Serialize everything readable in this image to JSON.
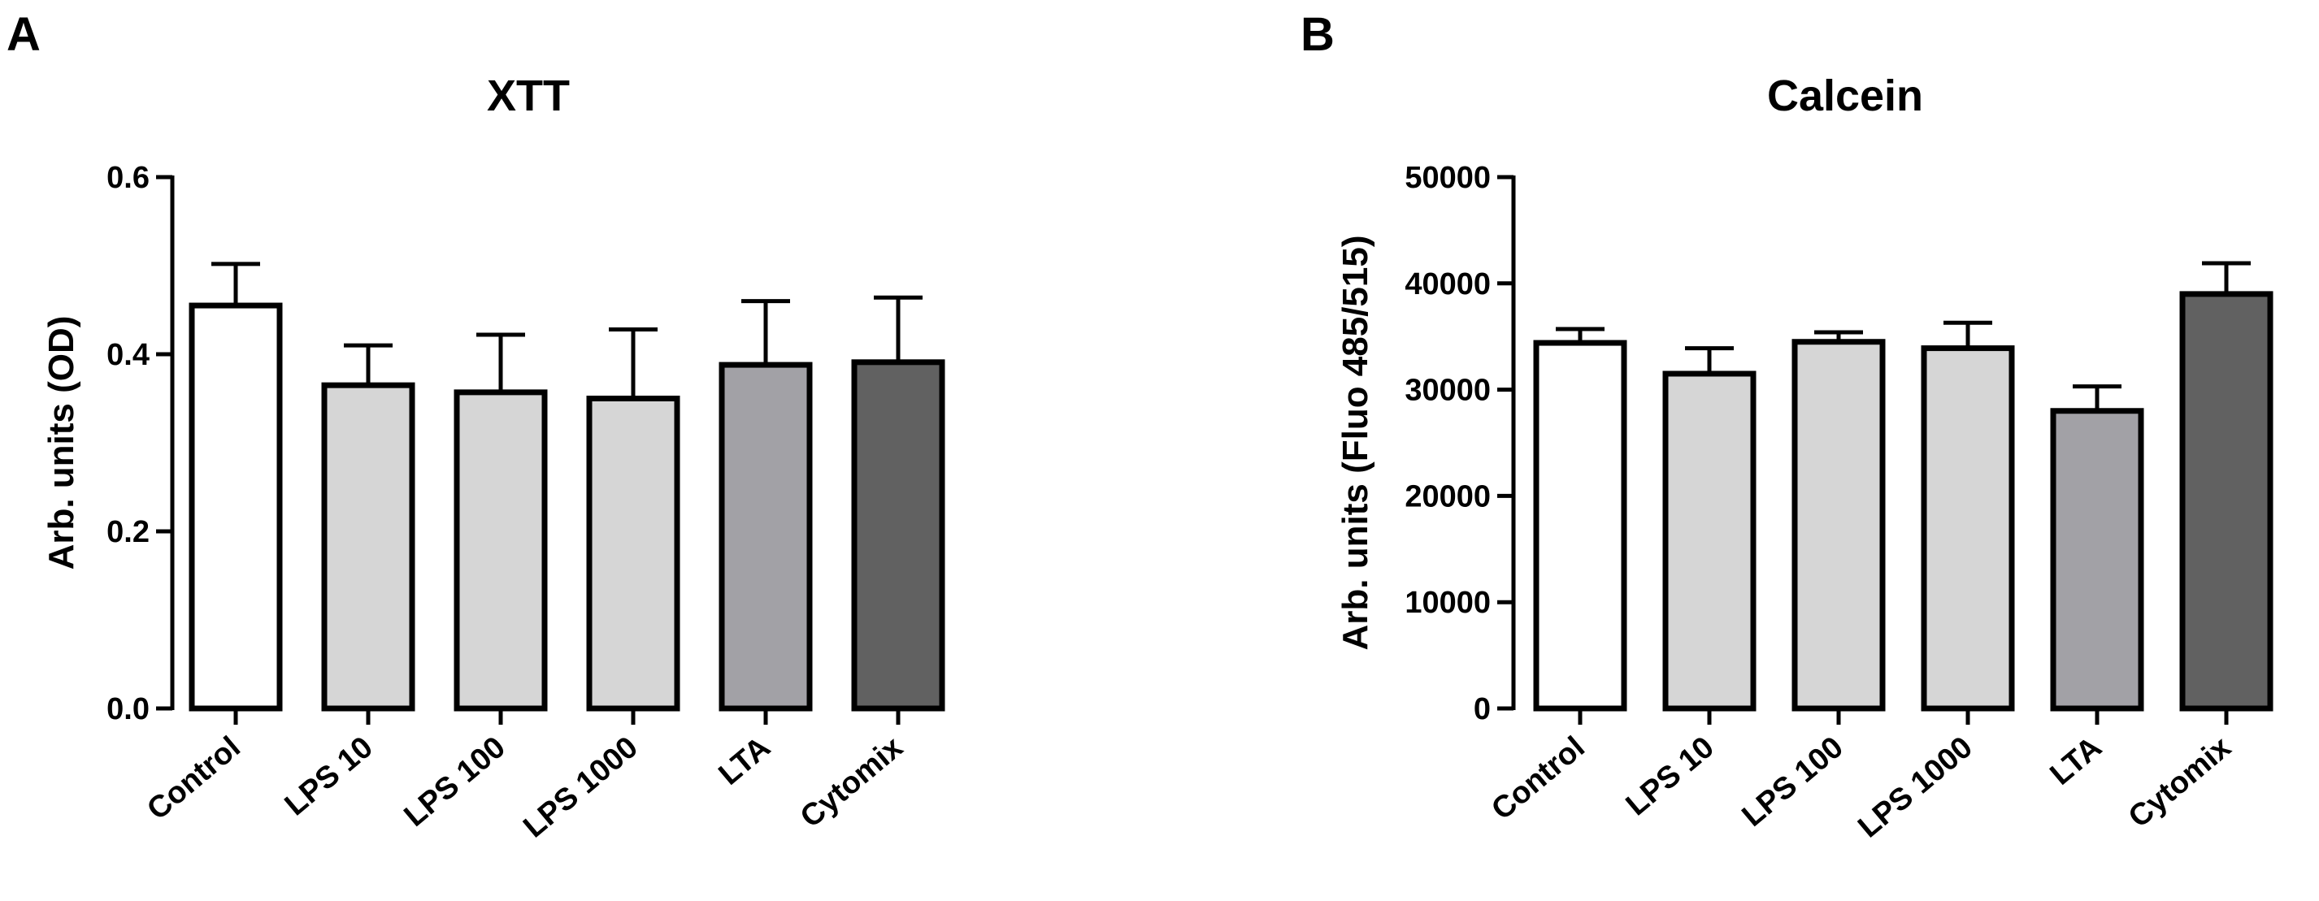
{
  "chart_data": [
    {
      "panel": "A",
      "type": "bar",
      "title": "XTT",
      "xlabel": "",
      "ylabel": "Arb. units (OD)",
      "ylim": [
        0,
        0.6
      ],
      "yticks": [
        0.0,
        0.2,
        0.4,
        0.6
      ],
      "ytick_labels": [
        "0.0",
        "0.2",
        "0.4",
        "0.6"
      ],
      "categories": [
        "Control",
        "LPS 10",
        "LPS 100",
        "LPS 1000",
        "LTA",
        "Cytomix"
      ],
      "values": [
        0.455,
        0.365,
        0.357,
        0.35,
        0.388,
        0.391
      ],
      "errors": [
        0.047,
        0.045,
        0.065,
        0.078,
        0.072,
        0.073
      ],
      "bar_colors": [
        "#ffffff",
        "#d6d6d6",
        "#d6d6d6",
        "#d6d6d6",
        "#a2a1a6",
        "#616161"
      ]
    },
    {
      "panel": "B",
      "type": "bar",
      "title": "Calcein",
      "xlabel": "",
      "ylabel": "Arb. units (Fluo 485/515)",
      "ylim": [
        0,
        50000
      ],
      "yticks": [
        0,
        10000,
        20000,
        30000,
        40000,
        50000
      ],
      "ytick_labels": [
        "0",
        "10000",
        "20000",
        "30000",
        "40000",
        "50000"
      ],
      "categories": [
        "Control",
        "LPS 10",
        "LPS 100",
        "LPS 1000",
        "LTA",
        "Cytomix"
      ],
      "values": [
        34400,
        31500,
        34500,
        33900,
        28000,
        39000
      ],
      "errors": [
        1300,
        2400,
        900,
        2400,
        2300,
        2900
      ],
      "bar_colors": [
        "#ffffff",
        "#d6d6d6",
        "#d6d6d6",
        "#d6d6d6",
        "#a2a1a6",
        "#616161"
      ]
    }
  ]
}
